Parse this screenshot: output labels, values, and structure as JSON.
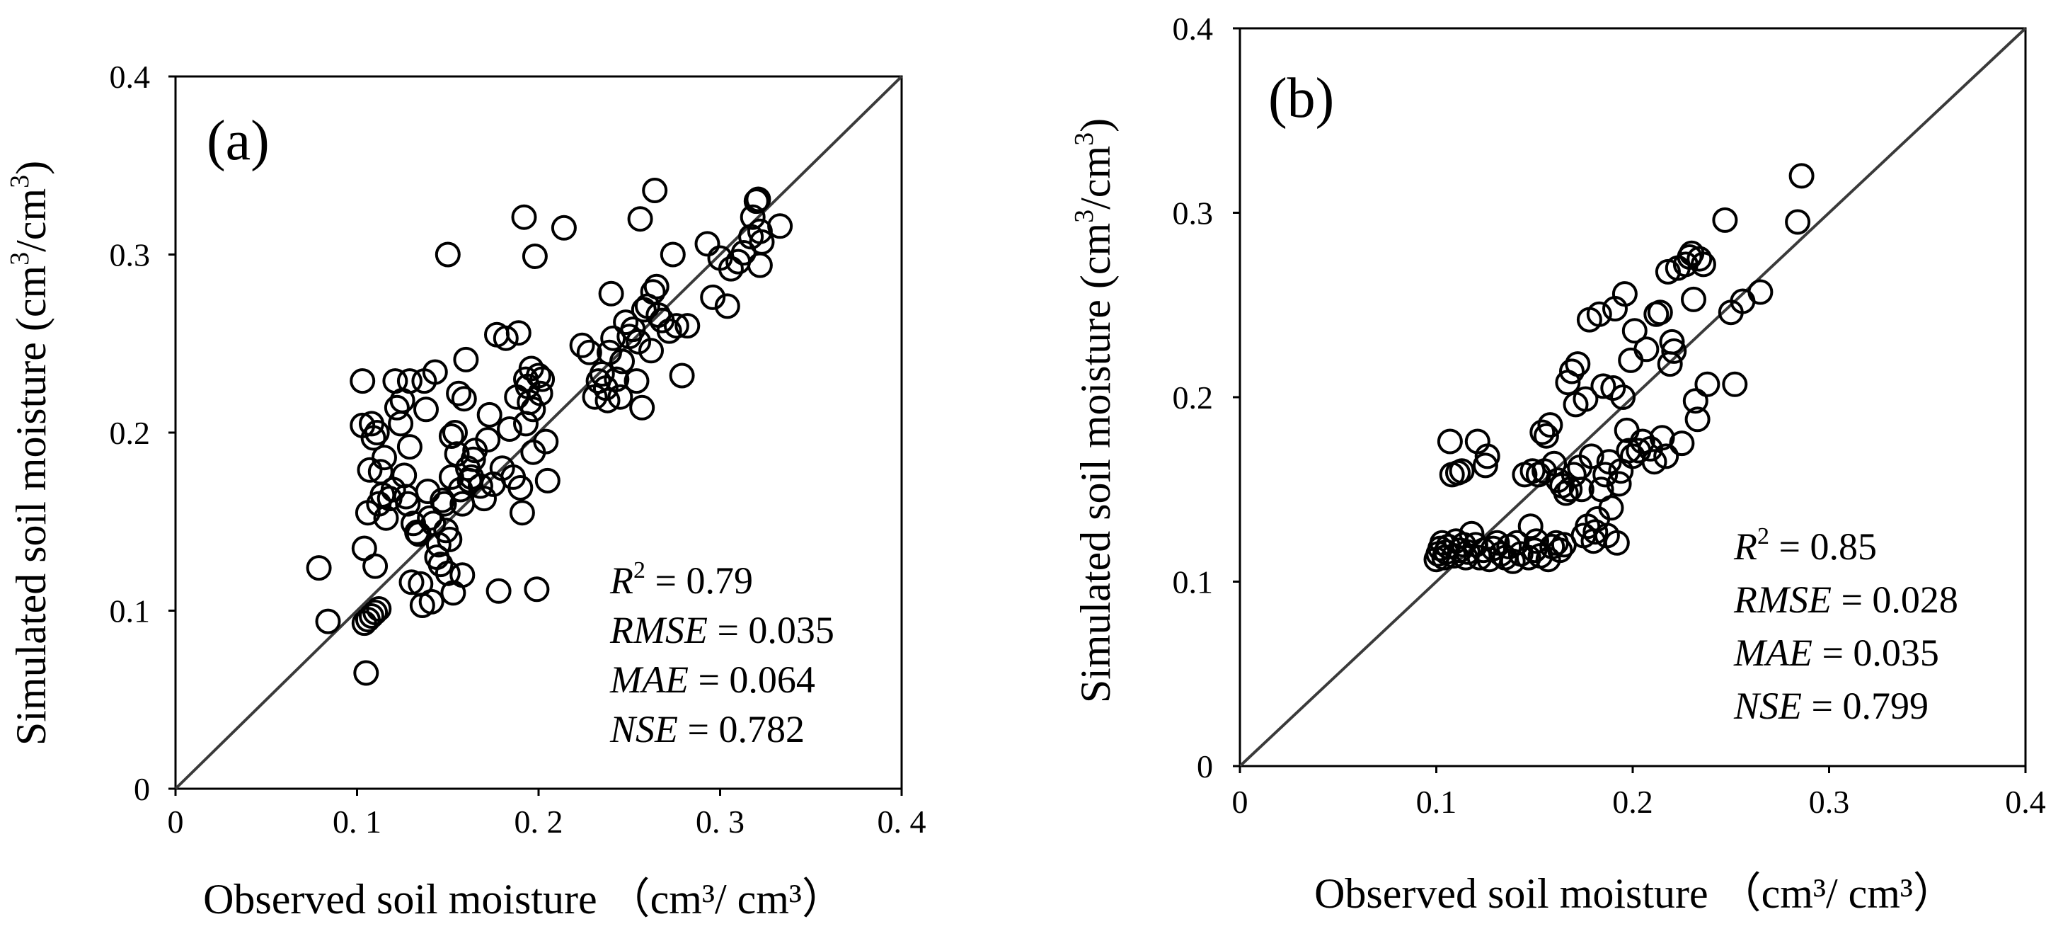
{
  "chart_data": [
    {
      "type": "scatter",
      "panel_label": "(a)",
      "xlabel": "Observed soil moisture （cm³/ cm³）",
      "ylabel_main": "Simulated soil moisture (cm",
      "ylabel_sup1": "3",
      "ylabel_mid": "/cm",
      "ylabel_sup2": "3",
      "ylabel_end": ")",
      "xlim": [
        0,
        0.4
      ],
      "ylim": [
        0,
        0.4
      ],
      "xticks": [
        0,
        0.1,
        0.2,
        0.3,
        0.4
      ],
      "yticks": [
        0,
        0.1,
        0.2,
        0.3,
        0.4
      ],
      "xtick_labels": [
        "0",
        "0. 1",
        "0. 2",
        "0. 3",
        "0. 4"
      ],
      "ytick_labels": [
        "0",
        "0.1",
        "0.2",
        "0.3",
        "0.4"
      ],
      "reference_line": "1:1",
      "stats": {
        "r2_label": "R",
        "r2_sup": "2",
        "r2_value": " = 0.79",
        "rmse_label": "RMSE",
        "rmse_value": " = 0.035",
        "mae_label": "MAE",
        "mae_value": " = 0.064",
        "nse_label": "NSE",
        "nse_value": " = 0.782"
      },
      "points": [
        [
          0.079,
          0.124
        ],
        [
          0.084,
          0.094
        ],
        [
          0.105,
          0.065
        ],
        [
          0.104,
          0.093
        ],
        [
          0.106,
          0.095
        ],
        [
          0.108,
          0.097
        ],
        [
          0.11,
          0.099
        ],
        [
          0.112,
          0.101
        ],
        [
          0.103,
          0.229
        ],
        [
          0.103,
          0.204
        ],
        [
          0.104,
          0.135
        ],
        [
          0.106,
          0.155
        ],
        [
          0.107,
          0.179
        ],
        [
          0.108,
          0.205
        ],
        [
          0.109,
          0.197
        ],
        [
          0.11,
          0.125
        ],
        [
          0.111,
          0.2
        ],
        [
          0.112,
          0.16
        ],
        [
          0.113,
          0.178
        ],
        [
          0.114,
          0.165
        ],
        [
          0.115,
          0.186
        ],
        [
          0.116,
          0.152
        ],
        [
          0.118,
          0.163
        ],
        [
          0.12,
          0.168
        ],
        [
          0.121,
          0.229
        ],
        [
          0.122,
          0.214
        ],
        [
          0.124,
          0.205
        ],
        [
          0.125,
          0.218
        ],
        [
          0.126,
          0.176
        ],
        [
          0.127,
          0.164
        ],
        [
          0.128,
          0.16
        ],
        [
          0.129,
          0.229
        ],
        [
          0.129,
          0.192
        ],
        [
          0.13,
          0.116
        ],
        [
          0.131,
          0.149
        ],
        [
          0.133,
          0.144
        ],
        [
          0.134,
          0.143
        ],
        [
          0.135,
          0.115
        ],
        [
          0.136,
          0.103
        ],
        [
          0.137,
          0.229
        ],
        [
          0.138,
          0.213
        ],
        [
          0.139,
          0.167
        ],
        [
          0.14,
          0.152
        ],
        [
          0.141,
          0.105
        ],
        [
          0.142,
          0.149
        ],
        [
          0.143,
          0.234
        ],
        [
          0.144,
          0.13
        ],
        [
          0.145,
          0.137
        ],
        [
          0.146,
          0.126
        ],
        [
          0.147,
          0.162
        ],
        [
          0.148,
          0.16
        ],
        [
          0.149,
          0.145
        ],
        [
          0.15,
          0.3
        ],
        [
          0.15,
          0.121
        ],
        [
          0.151,
          0.14
        ],
        [
          0.152,
          0.198
        ],
        [
          0.152,
          0.175
        ],
        [
          0.153,
          0.11
        ],
        [
          0.154,
          0.2
        ],
        [
          0.155,
          0.188
        ],
        [
          0.156,
          0.222
        ],
        [
          0.157,
          0.168
        ],
        [
          0.158,
          0.12
        ],
        [
          0.158,
          0.16
        ],
        [
          0.159,
          0.219
        ],
        [
          0.16,
          0.241
        ],
        [
          0.161,
          0.18
        ],
        [
          0.162,
          0.173
        ],
        [
          0.163,
          0.175
        ],
        [
          0.164,
          0.185
        ],
        [
          0.165,
          0.19
        ],
        [
          0.168,
          0.17
        ],
        [
          0.17,
          0.163
        ],
        [
          0.172,
          0.196
        ],
        [
          0.173,
          0.21
        ],
        [
          0.175,
          0.171
        ],
        [
          0.177,
          0.255
        ],
        [
          0.178,
          0.111
        ],
        [
          0.18,
          0.18
        ],
        [
          0.182,
          0.253
        ],
        [
          0.184,
          0.202
        ],
        [
          0.186,
          0.175
        ],
        [
          0.188,
          0.22
        ],
        [
          0.189,
          0.256
        ],
        [
          0.19,
          0.169
        ],
        [
          0.191,
          0.155
        ],
        [
          0.192,
          0.321
        ],
        [
          0.193,
          0.23
        ],
        [
          0.193,
          0.205
        ],
        [
          0.194,
          0.226
        ],
        [
          0.195,
          0.217
        ],
        [
          0.196,
          0.236
        ],
        [
          0.197,
          0.213
        ],
        [
          0.197,
          0.189
        ],
        [
          0.198,
          0.299
        ],
        [
          0.199,
          0.112
        ],
        [
          0.2,
          0.232
        ],
        [
          0.201,
          0.222
        ],
        [
          0.202,
          0.23
        ],
        [
          0.204,
          0.195
        ],
        [
          0.205,
          0.173
        ],
        [
          0.214,
          0.315
        ],
        [
          0.224,
          0.249
        ],
        [
          0.228,
          0.245
        ],
        [
          0.231,
          0.22
        ],
        [
          0.233,
          0.229
        ],
        [
          0.235,
          0.233
        ],
        [
          0.237,
          0.225
        ],
        [
          0.238,
          0.218
        ],
        [
          0.239,
          0.245
        ],
        [
          0.24,
          0.278
        ],
        [
          0.241,
          0.253
        ],
        [
          0.243,
          0.23
        ],
        [
          0.245,
          0.22
        ],
        [
          0.246,
          0.24
        ],
        [
          0.248,
          0.262
        ],
        [
          0.25,
          0.254
        ],
        [
          0.252,
          0.258
        ],
        [
          0.254,
          0.229
        ],
        [
          0.255,
          0.251
        ],
        [
          0.256,
          0.32
        ],
        [
          0.257,
          0.214
        ],
        [
          0.258,
          0.269
        ],
        [
          0.26,
          0.271
        ],
        [
          0.262,
          0.246
        ],
        [
          0.263,
          0.279
        ],
        [
          0.264,
          0.336
        ],
        [
          0.265,
          0.282
        ],
        [
          0.266,
          0.266
        ],
        [
          0.268,
          0.263
        ],
        [
          0.272,
          0.257
        ],
        [
          0.274,
          0.3
        ],
        [
          0.276,
          0.26
        ],
        [
          0.279,
          0.232
        ],
        [
          0.282,
          0.26
        ],
        [
          0.293,
          0.306
        ],
        [
          0.296,
          0.276
        ],
        [
          0.3,
          0.298
        ],
        [
          0.304,
          0.271
        ],
        [
          0.306,
          0.292
        ],
        [
          0.31,
          0.296
        ],
        [
          0.313,
          0.301
        ],
        [
          0.317,
          0.31
        ],
        [
          0.318,
          0.321
        ],
        [
          0.32,
          0.33
        ],
        [
          0.321,
          0.331
        ],
        [
          0.322,
          0.313
        ],
        [
          0.323,
          0.307
        ],
        [
          0.322,
          0.294
        ],
        [
          0.333,
          0.316
        ]
      ]
    },
    {
      "type": "scatter",
      "panel_label": "(b)",
      "xlabel": "Observed soil moisture （cm³/ cm³）",
      "ylabel_main": "Simulated soil moisture (cm",
      "ylabel_sup1": "3",
      "ylabel_mid": "/cm",
      "ylabel_sup2": "3",
      "ylabel_end": ")",
      "xlim": [
        0,
        0.4
      ],
      "ylim": [
        0,
        0.4
      ],
      "xticks": [
        0,
        0.1,
        0.2,
        0.3,
        0.4
      ],
      "yticks": [
        0,
        0.1,
        0.2,
        0.3,
        0.4
      ],
      "xtick_labels": [
        "0",
        "0.1",
        "0.2",
        "0.3",
        "0.4"
      ],
      "ytick_labels": [
        "0",
        "0.1",
        "0.2",
        "0.3",
        "0.4"
      ],
      "reference_line": "1:1",
      "stats": {
        "r2_label": "R",
        "r2_sup": "2",
        "r2_value": " = 0.85",
        "rmse_label": "RMSE",
        "rmse_value": " = 0.028",
        "mae_label": "MAE",
        "mae_value": " = 0.035",
        "nse_label": "NSE",
        "nse_value": " = 0.799"
      },
      "points": [
        [
          0.1,
          0.112
        ],
        [
          0.101,
          0.115
        ],
        [
          0.102,
          0.118
        ],
        [
          0.103,
          0.121
        ],
        [
          0.104,
          0.113
        ],
        [
          0.105,
          0.116
        ],
        [
          0.106,
          0.119
        ],
        [
          0.107,
          0.176
        ],
        [
          0.108,
          0.158
        ],
        [
          0.109,
          0.114
        ],
        [
          0.11,
          0.122
        ],
        [
          0.111,
          0.159
        ],
        [
          0.112,
          0.117
        ],
        [
          0.113,
          0.16
        ],
        [
          0.114,
          0.12
        ],
        [
          0.115,
          0.113
        ],
        [
          0.116,
          0.116
        ],
        [
          0.118,
          0.126
        ],
        [
          0.12,
          0.12
        ],
        [
          0.121,
          0.176
        ],
        [
          0.122,
          0.113
        ],
        [
          0.124,
          0.117
        ],
        [
          0.125,
          0.163
        ],
        [
          0.126,
          0.168
        ],
        [
          0.127,
          0.112
        ],
        [
          0.129,
          0.118
        ],
        [
          0.131,
          0.121
        ],
        [
          0.133,
          0.115
        ],
        [
          0.135,
          0.113
        ],
        [
          0.137,
          0.119
        ],
        [
          0.139,
          0.111
        ],
        [
          0.141,
          0.121
        ],
        [
          0.143,
          0.115
        ],
        [
          0.145,
          0.158
        ],
        [
          0.147,
          0.113
        ],
        [
          0.148,
          0.13
        ],
        [
          0.149,
          0.16
        ],
        [
          0.15,
          0.117
        ],
        [
          0.151,
          0.122
        ],
        [
          0.152,
          0.158
        ],
        [
          0.153,
          0.114
        ],
        [
          0.154,
          0.181
        ],
        [
          0.155,
          0.16
        ],
        [
          0.156,
          0.179
        ],
        [
          0.157,
          0.112
        ],
        [
          0.158,
          0.185
        ],
        [
          0.159,
          0.119
        ],
        [
          0.16,
          0.164
        ],
        [
          0.161,
          0.121
        ],
        [
          0.162,
          0.155
        ],
        [
          0.163,
          0.117
        ],
        [
          0.164,
          0.152
        ],
        [
          0.165,
          0.12
        ],
        [
          0.166,
          0.148
        ],
        [
          0.167,
          0.208
        ],
        [
          0.168,
          0.15
        ],
        [
          0.169,
          0.214
        ],
        [
          0.17,
          0.158
        ],
        [
          0.171,
          0.196
        ],
        [
          0.172,
          0.218
        ],
        [
          0.173,
          0.162
        ],
        [
          0.174,
          0.15
        ],
        [
          0.175,
          0.125
        ],
        [
          0.176,
          0.199
        ],
        [
          0.177,
          0.13
        ],
        [
          0.178,
          0.242
        ],
        [
          0.179,
          0.168
        ],
        [
          0.18,
          0.122
        ],
        [
          0.181,
          0.127
        ],
        [
          0.182,
          0.134
        ],
        [
          0.183,
          0.245
        ],
        [
          0.184,
          0.15
        ],
        [
          0.185,
          0.206
        ],
        [
          0.186,
          0.158
        ],
        [
          0.187,
          0.125
        ],
        [
          0.188,
          0.165
        ],
        [
          0.189,
          0.14
        ],
        [
          0.19,
          0.205
        ],
        [
          0.191,
          0.248
        ],
        [
          0.192,
          0.121
        ],
        [
          0.193,
          0.153
        ],
        [
          0.194,
          0.16
        ],
        [
          0.195,
          0.2
        ],
        [
          0.196,
          0.256
        ],
        [
          0.197,
          0.182
        ],
        [
          0.198,
          0.171
        ],
        [
          0.199,
          0.22
        ],
        [
          0.2,
          0.168
        ],
        [
          0.201,
          0.236
        ],
        [
          0.203,
          0.171
        ],
        [
          0.205,
          0.176
        ],
        [
          0.207,
          0.226
        ],
        [
          0.209,
          0.172
        ],
        [
          0.211,
          0.165
        ],
        [
          0.212,
          0.245
        ],
        [
          0.214,
          0.246
        ],
        [
          0.215,
          0.178
        ],
        [
          0.217,
          0.168
        ],
        [
          0.218,
          0.268
        ],
        [
          0.219,
          0.218
        ],
        [
          0.22,
          0.23
        ],
        [
          0.221,
          0.225
        ],
        [
          0.223,
          0.27
        ],
        [
          0.225,
          0.175
        ],
        [
          0.227,
          0.272
        ],
        [
          0.229,
          0.276
        ],
        [
          0.23,
          0.278
        ],
        [
          0.231,
          0.253
        ],
        [
          0.232,
          0.198
        ],
        [
          0.233,
          0.188
        ],
        [
          0.234,
          0.275
        ],
        [
          0.236,
          0.272
        ],
        [
          0.238,
          0.207
        ],
        [
          0.247,
          0.296
        ],
        [
          0.25,
          0.246
        ],
        [
          0.252,
          0.207
        ],
        [
          0.256,
          0.252
        ],
        [
          0.265,
          0.257
        ],
        [
          0.284,
          0.295
        ],
        [
          0.286,
          0.32
        ]
      ]
    }
  ]
}
